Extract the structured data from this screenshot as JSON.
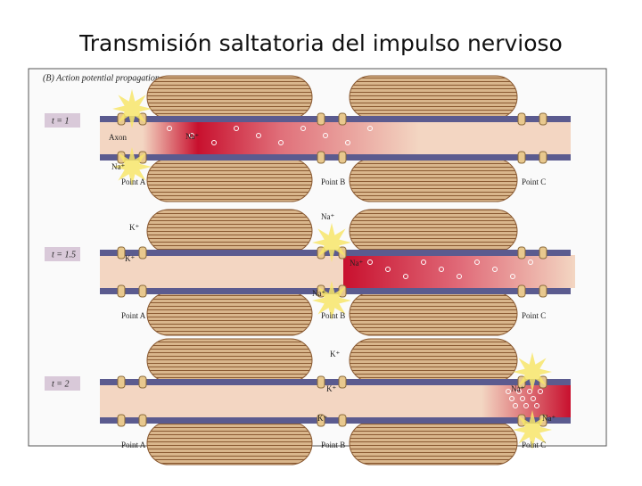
{
  "title": "Transmisión saltatoria del impulso nervioso",
  "figure": {
    "caption": "(B) Action potential propagation",
    "panels": [
      {
        "time": "t = 1",
        "axon": "Axon",
        "ions": [
          "Na⁺",
          "Na⁺"
        ],
        "points": [
          "Point A",
          "Point B",
          "Point C"
        ]
      },
      {
        "time": "t = 1.5",
        "ions": [
          "K⁺",
          "K⁺",
          "Na⁺",
          "Na⁺",
          "Na⁺"
        ],
        "points": [
          "Point A",
          "Point B",
          "Point C"
        ]
      },
      {
        "time": "t = 2",
        "ions": [
          "K⁺",
          "K⁺",
          "K⁺",
          "Na⁺",
          "Na⁺"
        ],
        "points": [
          "Point A",
          "Point B",
          "Point C"
        ]
      }
    ]
  }
}
